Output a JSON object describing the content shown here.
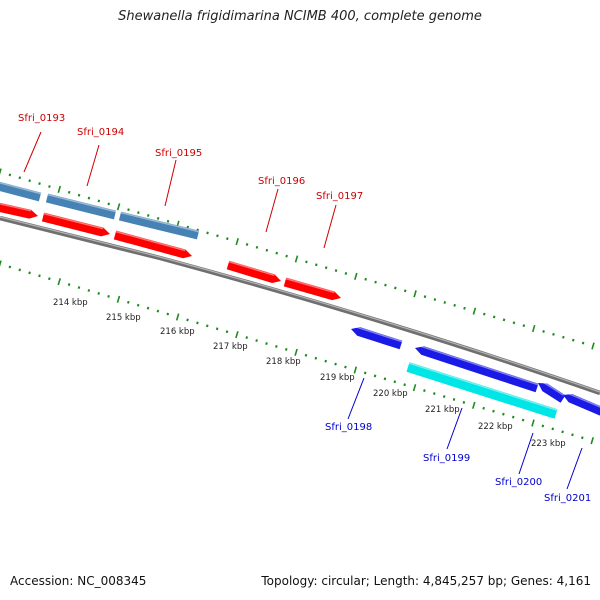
{
  "title": "Shewanella frigidimarina NCIMB 400, complete genome",
  "footer": {
    "accession": "Accession: NC_008345",
    "topology": "Topology: circular; Length: 4,845,257 bp; Genes: 4,161"
  },
  "colors": {
    "backbone": "#8a8a8a",
    "tick_green": "#1f8a1f",
    "strand_red": "#ff0000",
    "strand_steelblue": "#4682b4",
    "strand_blue": "#1a1ae6",
    "strand_cyan": "#00e5e5",
    "label_red": "#cc0000",
    "label_blue": "#0000cc"
  },
  "scale": {
    "ticks": [
      "214 kbp",
      "215 kbp",
      "216 kbp",
      "217 kbp",
      "218 kbp",
      "219 kbp",
      "220 kbp",
      "221 kbp",
      "222 kbp",
      "223 kbp"
    ]
  },
  "genes": [
    {
      "name": "Sfri_0193",
      "color": "red"
    },
    {
      "name": "Sfri_0194",
      "color": "red"
    },
    {
      "name": "Sfri_0195",
      "color": "red"
    },
    {
      "name": "Sfri_0196",
      "color": "red"
    },
    {
      "name": "Sfri_0197",
      "color": "red"
    },
    {
      "name": "Sfri_0198",
      "color": "blue"
    },
    {
      "name": "Sfri_0199",
      "color": "blue"
    },
    {
      "name": "Sfri_0200",
      "color": "blue"
    },
    {
      "name": "Sfri_0201",
      "color": "blue"
    }
  ]
}
